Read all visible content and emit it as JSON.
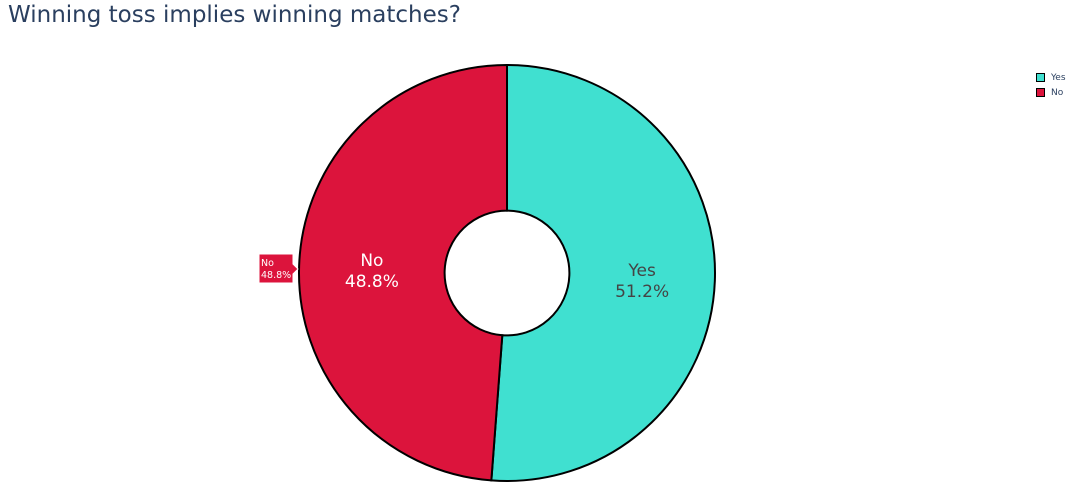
{
  "chart_data": {
    "type": "pie",
    "title": "Winning toss implies winning matches?",
    "hole": 0.3,
    "slices": [
      {
        "label": "Yes",
        "value": 51.2,
        "percent_text": "51.2%",
        "color": "#40e0d0",
        "text_color": "#444444"
      },
      {
        "label": "No",
        "value": 48.8,
        "percent_text": "48.8%",
        "color": "#dc143c",
        "text_color": "#ffffff"
      }
    ],
    "legend": {
      "placement": "top-right",
      "entries": [
        "Yes",
        "No"
      ]
    },
    "hover_label": {
      "label": "No",
      "value_text": "48.8%"
    }
  }
}
